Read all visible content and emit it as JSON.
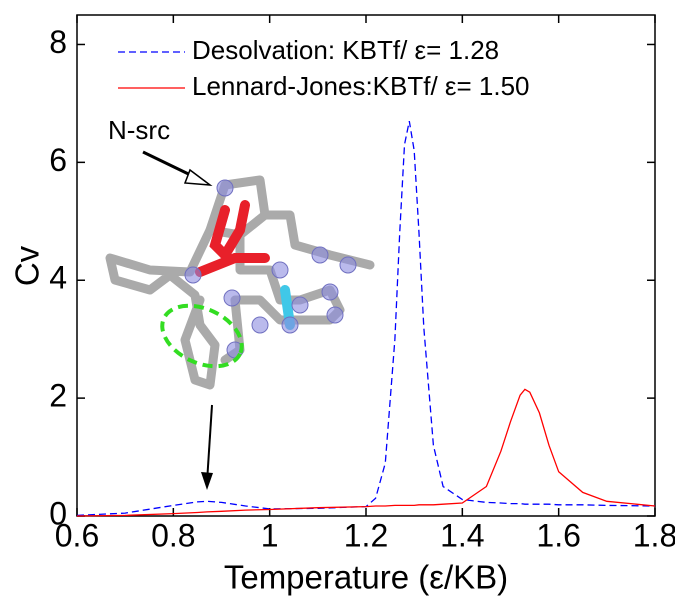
{
  "chart_data": {
    "type": "line",
    "xlabel": "Temperature (ε/KB)",
    "ylabel": "Cv",
    "annotation": "N-src",
    "x": [
      0.6,
      0.7,
      0.8,
      0.85,
      0.87,
      0.9,
      0.95,
      1.0,
      1.1,
      1.2,
      1.22,
      1.24,
      1.26,
      1.27,
      1.28,
      1.29,
      1.3,
      1.31,
      1.32,
      1.34,
      1.36,
      1.4,
      1.45,
      1.48,
      1.5,
      1.52,
      1.53,
      1.54,
      1.56,
      1.58,
      1.6,
      1.65,
      1.7,
      1.8
    ],
    "series": [
      {
        "name": "Desolvation: KBTf/ ε= 1.28",
        "color": "#0000ff",
        "dash": true,
        "values": [
          0.01,
          0.05,
          0.18,
          0.24,
          0.25,
          0.23,
          0.17,
          0.12,
          0.13,
          0.16,
          0.3,
          0.9,
          3.0,
          4.8,
          6.3,
          6.7,
          6.2,
          4.8,
          3.2,
          1.2,
          0.5,
          0.28,
          0.23,
          0.22,
          0.21,
          0.21,
          0.2,
          0.2,
          0.2,
          0.2,
          0.19,
          0.19,
          0.18,
          0.17
        ]
      },
      {
        "name": "Lennard-Jones:KBTf/ ε= 1.50",
        "color": "#ff0000",
        "dash": false,
        "values": [
          0.0,
          0.01,
          0.04,
          0.06,
          0.07,
          0.08,
          0.1,
          0.11,
          0.14,
          0.16,
          0.17,
          0.17,
          0.18,
          0.18,
          0.18,
          0.18,
          0.18,
          0.19,
          0.19,
          0.19,
          0.2,
          0.22,
          0.5,
          1.1,
          1.6,
          2.05,
          2.15,
          2.1,
          1.75,
          1.2,
          0.75,
          0.4,
          0.25,
          0.17
        ]
      }
    ],
    "xlim": [
      0.6,
      1.8
    ],
    "xticks": [
      0.6,
      0.8,
      1,
      1.2,
      1.4,
      1.6,
      1.8
    ],
    "ylim": [
      0,
      8.5
    ],
    "yticks": [
      0,
      2,
      4,
      6,
      8
    ]
  }
}
